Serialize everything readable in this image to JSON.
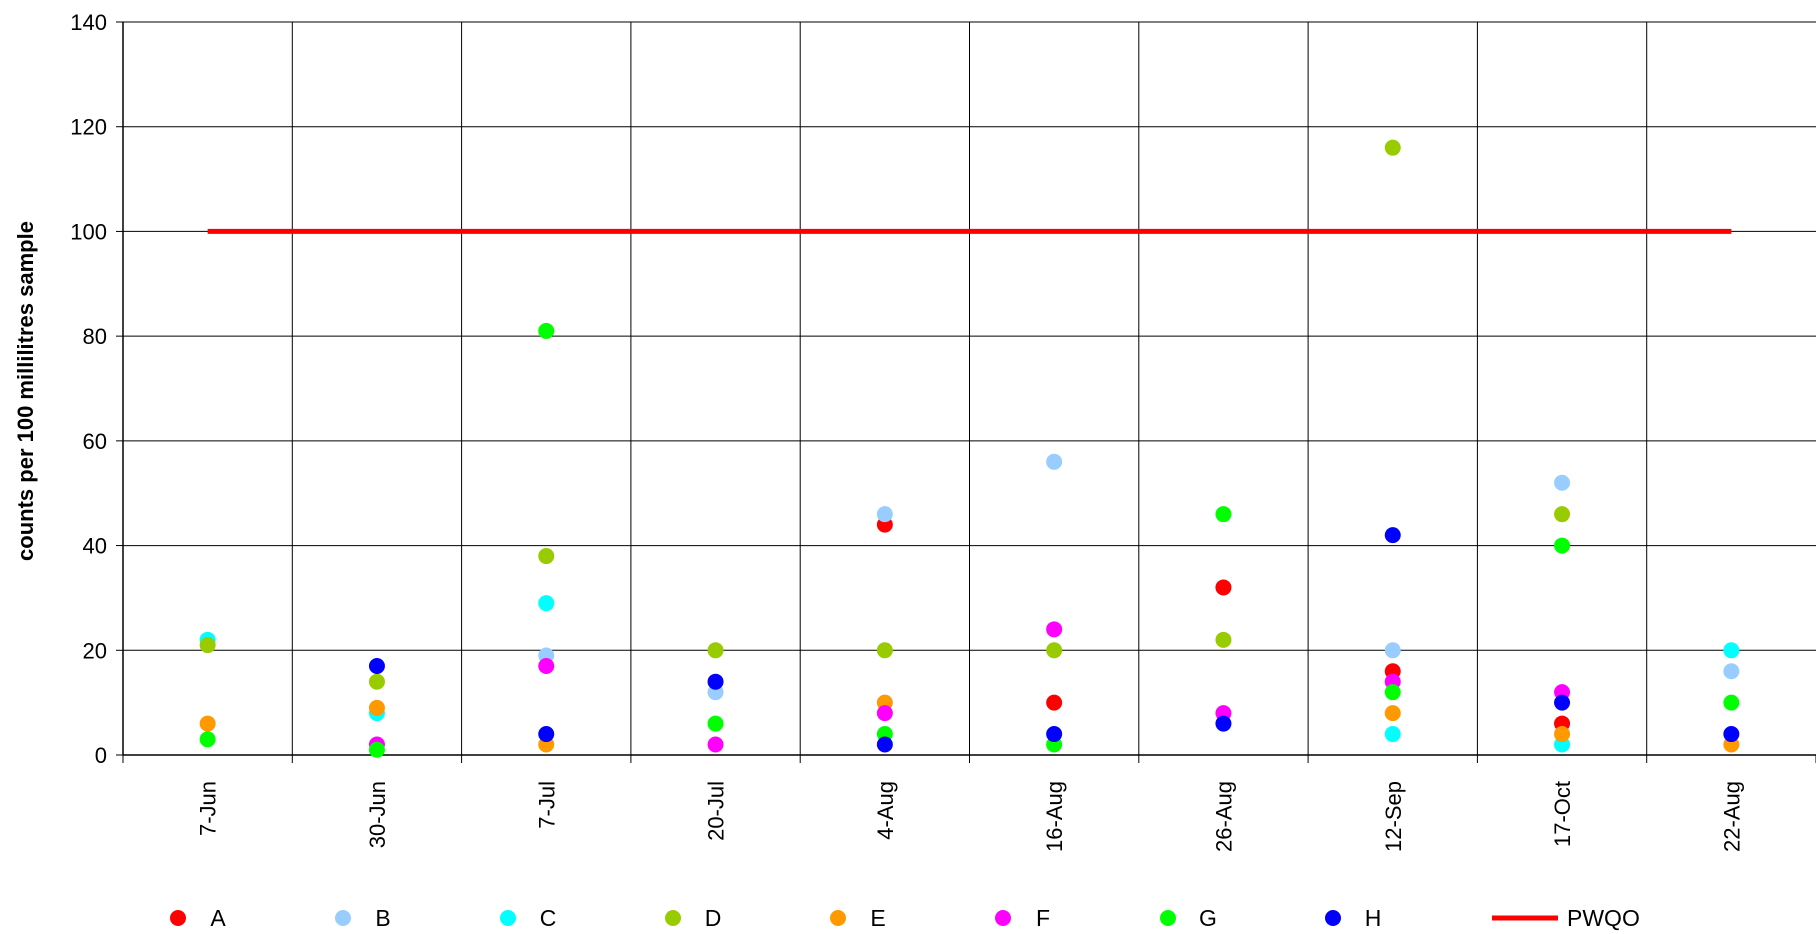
{
  "chart_data": {
    "type": "scatter",
    "title": "",
    "xlabel": "",
    "ylabel": "counts per 100 millilitres sample",
    "categories": [
      "7-Jun",
      "30-Jun",
      "7-Jul",
      "20-Jul",
      "4-Aug",
      "16-Aug",
      "26-Aug",
      "12-Sep",
      "17-Oct",
      "22-Aug"
    ],
    "ylim": [
      0,
      140
    ],
    "yticks": [
      0,
      20,
      40,
      60,
      80,
      100,
      120,
      140
    ],
    "grid": true,
    "legend_position": "bottom",
    "series": [
      {
        "name": "A",
        "color": "#ff0000",
        "values": [
          null,
          null,
          null,
          null,
          44,
          10,
          32,
          16,
          6,
          null
        ]
      },
      {
        "name": "B",
        "color": "#99ccff",
        "values": [
          null,
          null,
          19,
          12,
          46,
          56,
          null,
          20,
          52,
          16
        ]
      },
      {
        "name": "C",
        "color": "#00ffff",
        "values": [
          22,
          8,
          29,
          null,
          null,
          null,
          null,
          4,
          2,
          20
        ]
      },
      {
        "name": "D",
        "color": "#99cc00",
        "values": [
          21,
          14,
          38,
          20,
          20,
          20,
          22,
          116,
          46,
          null
        ]
      },
      {
        "name": "E",
        "color": "#ff9900",
        "values": [
          6,
          9,
          2,
          null,
          10,
          null,
          null,
          8,
          4,
          2
        ]
      },
      {
        "name": "F",
        "color": "#ff00ff",
        "values": [
          null,
          2,
          17,
          2,
          8,
          24,
          8,
          14,
          12,
          null
        ]
      },
      {
        "name": "G",
        "color": "#00ff00",
        "values": [
          3,
          1,
          81,
          6,
          4,
          2,
          46,
          12,
          40,
          10
        ]
      },
      {
        "name": "H",
        "color": "#0000ff",
        "values": [
          null,
          17,
          4,
          14,
          2,
          4,
          6,
          42,
          10,
          4
        ]
      }
    ],
    "reference_line": {
      "name": "PWQO",
      "color": "#ff0000",
      "value": 100
    }
  }
}
